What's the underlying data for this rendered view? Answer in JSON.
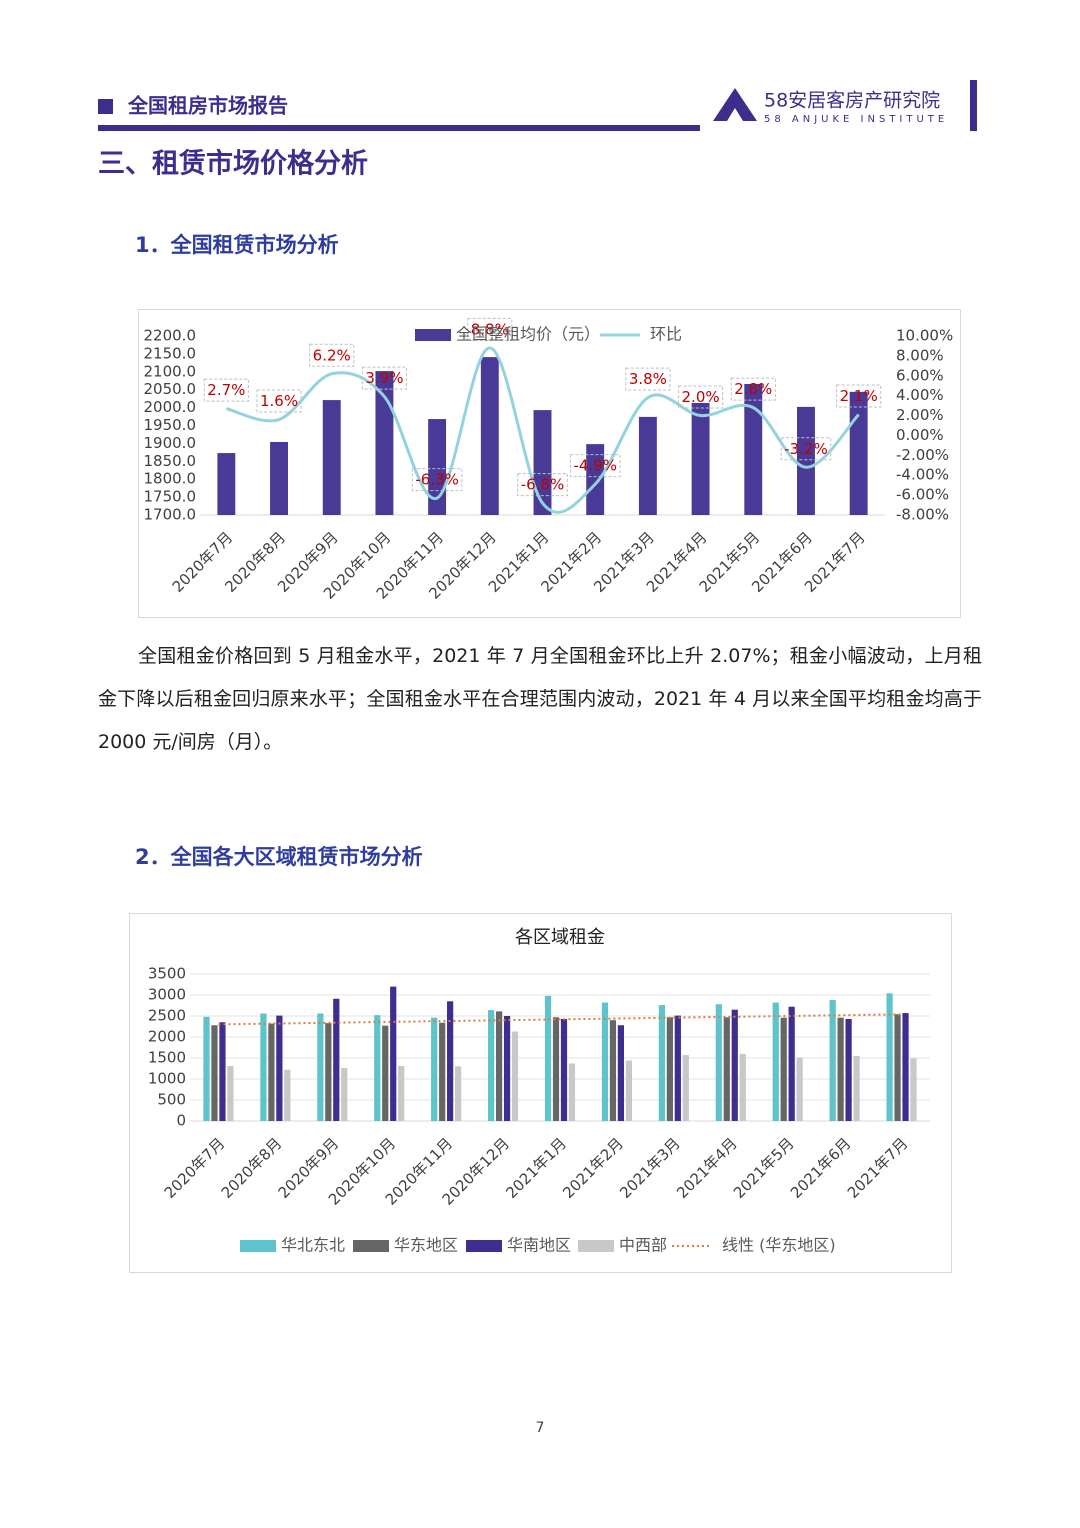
{
  "header": {
    "title": "全国租房市场报告",
    "brand": "58安居客房产研究院",
    "brand_en": "58 ANJUKE INSTITUTE"
  },
  "section_title": "三、租赁市场价格分析",
  "subsections": [
    {
      "title": "1．全国租赁市场分析"
    },
    {
      "title": "2．全国各大区域租赁市场分析"
    }
  ],
  "paragraph": "全国租金价格回到 5 月租金水平，2021 年 7 月全国租金环比上升 2.07%；租金小幅波动，上月租金下降以后租金回归原来水平；全国租金水平在合理范围内波动，2021 年 4 月以来全国平均租金均高于 2000 元/间房（月）。",
  "page_number": "7",
  "chart_data": [
    {
      "type": "bar",
      "categories": [
        "2020年7月",
        "2020年8月",
        "2020年9月",
        "2020年10月",
        "2020年11月",
        "2020年12月",
        "2021年1月",
        "2021年2月",
        "2021年3月",
        "2021年4月",
        "2021年5月",
        "2021年6月",
        "2021年7月"
      ],
      "series": [
        {
          "name": "全国整租均价（元）",
          "color": "#4a3a97",
          "values": [
            1873,
            1904,
            2021,
            2102,
            1968,
            2141,
            1993,
            1898,
            1974,
            2013,
            2066,
            2002,
            2044
          ]
        },
        {
          "name": "环比",
          "color": "#92d3dd",
          "type": "line",
          "axis": "y2",
          "smooth": true,
          "values": [
            2.7,
            1.6,
            6.2,
            3.9,
            -6.3,
            8.8,
            -6.8,
            -4.9,
            3.8,
            2.0,
            2.8,
            -3.2,
            2.1
          ],
          "value_labels": [
            "2.7%",
            "1.6%",
            "6.2%",
            "3.9%",
            "-6.3%",
            "8.8%",
            "-6.8%",
            "-4.9%",
            "3.8%",
            "2.0%",
            "2.8%",
            "-3.2%",
            "2.1%"
          ]
        }
      ],
      "ylim": [
        1700,
        2200
      ],
      "yticks": [
        {
          "value": 1700,
          "label": "1700.0"
        },
        {
          "value": 1750,
          "label": "1750.0"
        },
        {
          "value": 1800,
          "label": "1800.0"
        },
        {
          "value": 1850,
          "label": "1850.0"
        },
        {
          "value": 1900,
          "label": "1900.0"
        },
        {
          "value": 1950,
          "label": "1950.0"
        },
        {
          "value": 2000,
          "label": "2000.0"
        },
        {
          "value": 2050,
          "label": "2050.0"
        },
        {
          "value": 2100,
          "label": "2100.0"
        },
        {
          "value": 2150,
          "label": "2150.0"
        },
        {
          "value": 2200,
          "label": "2200.0"
        }
      ],
      "y2lim": [
        -8,
        10
      ],
      "y2ticks": [
        {
          "value": -8,
          "label": "-8.00%"
        },
        {
          "value": -6,
          "label": "-6.00%"
        },
        {
          "value": -4,
          "label": "-4.00%"
        },
        {
          "value": -2,
          "label": "-2.00%"
        },
        {
          "value": 0,
          "label": "0.00%"
        },
        {
          "value": 2,
          "label": "2.00%"
        },
        {
          "value": 4,
          "label": "4.00%"
        },
        {
          "value": 6,
          "label": "6.00%"
        },
        {
          "value": 8,
          "label": "8.00%"
        },
        {
          "value": 10,
          "label": "10.00%"
        }
      ],
      "grid": false,
      "legend": "top"
    },
    {
      "type": "bar",
      "title": "各区域租金",
      "categories": [
        "2020年7月",
        "2020年8月",
        "2020年9月",
        "2020年10月",
        "2020年11月",
        "2020年12月",
        "2021年1月",
        "2021年2月",
        "2021年3月",
        "2021年4月",
        "2021年5月",
        "2021年6月",
        "2021年7月"
      ],
      "series": [
        {
          "name": "华北东北",
          "color": "#5ec3cb",
          "values": [
            2480,
            2560,
            2560,
            2520,
            2460,
            2640,
            2980,
            2820,
            2760,
            2780,
            2820,
            2880,
            3040
          ]
        },
        {
          "name": "华东地区",
          "color": "#666666",
          "values": [
            2280,
            2320,
            2330,
            2270,
            2340,
            2610,
            2470,
            2400,
            2470,
            2470,
            2460,
            2460,
            2540
          ]
        },
        {
          "name": "华南地区",
          "color": "#3f2e8f",
          "values": [
            2350,
            2510,
            2910,
            3200,
            2850,
            2500,
            2430,
            2280,
            2510,
            2650,
            2720,
            2430,
            2570
          ]
        },
        {
          "name": "中西部",
          "color": "#c8c8c8",
          "values": [
            1310,
            1220,
            1260,
            1310,
            1300,
            2130,
            1370,
            1440,
            1570,
            1600,
            1510,
            1550,
            1490
          ]
        },
        {
          "name": "线性 (华东地区)",
          "color": "#e07b39",
          "type": "line",
          "dash": true,
          "values": [
            2300,
            2320,
            2340,
            2360,
            2380,
            2400,
            2420,
            2440,
            2460,
            2480,
            2500,
            2520,
            2540
          ]
        }
      ],
      "ylim": [
        0,
        3500
      ],
      "yticks": [
        0,
        500,
        1000,
        1500,
        2000,
        2500,
        3000,
        3500
      ],
      "grid": true,
      "legend": "bottom"
    }
  ]
}
